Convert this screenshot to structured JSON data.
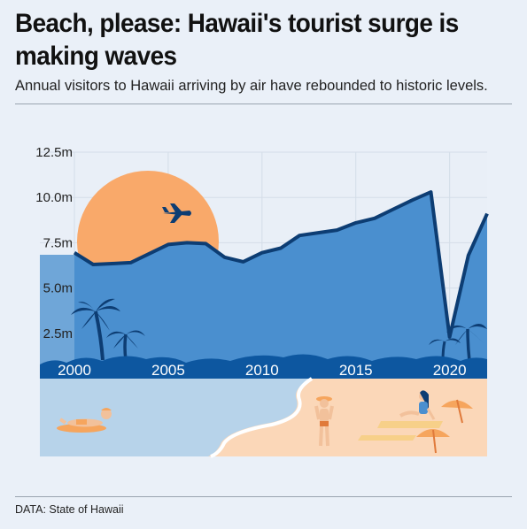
{
  "header": {
    "title": "Beach, please: Hawaii's tourist surge is making waves",
    "subtitle": "Annual visitors to Hawaii arriving by air have rebounded to historic levels."
  },
  "footer": {
    "source": "DATA: State of Hawaii"
  },
  "colors": {
    "area_fill": "#4a8fcf",
    "line": "#0d3d73",
    "sun": "#f9a96a",
    "sand": "#fbd7b8",
    "water": "#b7d3ea",
    "background": "#eaf0f8"
  },
  "illustration_icons": [
    "sun-icon",
    "airplane-icon",
    "palm-tree-icon",
    "swimmer-icon",
    "sunbather-icon",
    "beach-umbrella-icon"
  ],
  "chart_data": {
    "type": "area",
    "title": "Beach, please: Hawaii's tourist surge is making waves",
    "subtitle": "Annual visitors to Hawaii arriving by air have rebounded to historic levels.",
    "xlabel": "",
    "ylabel": "",
    "x": [
      2000,
      2001,
      2002,
      2003,
      2004,
      2005,
      2006,
      2007,
      2008,
      2009,
      2010,
      2011,
      2012,
      2013,
      2014,
      2015,
      2016,
      2017,
      2018,
      2019,
      2020,
      2021,
      2022
    ],
    "values": [
      6.95,
      6.3,
      6.35,
      6.4,
      6.9,
      7.4,
      7.5,
      7.45,
      6.7,
      6.45,
      6.95,
      7.2,
      7.9,
      8.05,
      8.2,
      8.6,
      8.85,
      9.35,
      9.85,
      10.3,
      2.3,
      6.8,
      9.1
    ],
    "xticks": [
      "2000",
      "2005",
      "2010",
      "2015",
      "2020"
    ],
    "xtick_values": [
      2000,
      2005,
      2010,
      2015,
      2020
    ],
    "yticks": [
      "2.5m",
      "5.0m",
      "7.5m",
      "10.0m",
      "12.5m"
    ],
    "ytick_values": [
      2.5,
      5.0,
      7.5,
      10.0,
      12.5
    ],
    "xlim": [
      2000,
      2022
    ],
    "ylim": [
      0,
      12.5
    ],
    "grid": true,
    "legend": "none"
  }
}
